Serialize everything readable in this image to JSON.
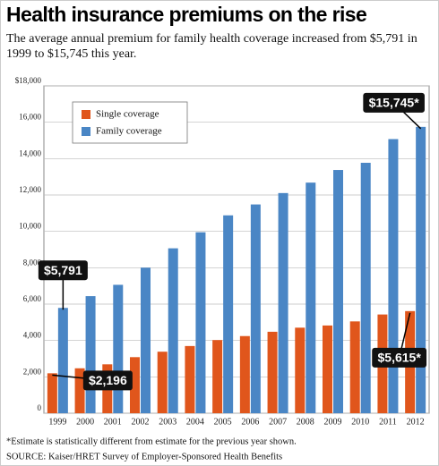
{
  "chart_data": {
    "type": "bar",
    "title": "Health insurance premiums on the rise",
    "subtitle": "The average annual premium for family health coverage increased from $5,791 in 1999 to $15,745 this year.",
    "categories": [
      "1999",
      "2000",
      "2001",
      "2002",
      "2003",
      "2004",
      "2005",
      "2006",
      "2007",
      "2008",
      "2009",
      "2010",
      "2011",
      "2012"
    ],
    "series": [
      {
        "name": "Single coverage",
        "color": "#e0561c",
        "values": [
          2196,
          2471,
          2689,
          3083,
          3383,
          3695,
          4024,
          4242,
          4479,
          4704,
          4824,
          5049,
          5429,
          5615
        ],
        "value_labels": [
          "$2,196",
          null,
          null,
          null,
          null,
          null,
          null,
          null,
          null,
          null,
          null,
          null,
          null,
          "$5,615*"
        ]
      },
      {
        "name": "Family coverage",
        "color": "#4a86c5",
        "values": [
          5791,
          6438,
          7061,
          8003,
          9068,
          9950,
          10880,
          11480,
          12106,
          12680,
          13375,
          13770,
          15073,
          15745
        ],
        "value_labels": [
          "$5,791",
          null,
          null,
          null,
          null,
          null,
          null,
          null,
          null,
          null,
          null,
          null,
          null,
          "$15,745*"
        ]
      }
    ],
    "ylim": [
      0,
      18000
    ],
    "yticks": [
      {
        "value": 0,
        "label": "0"
      },
      {
        "value": 2000,
        "label": "2,000"
      },
      {
        "value": 4000,
        "label": "4,000"
      },
      {
        "value": 6000,
        "label": "6,000"
      },
      {
        "value": 8000,
        "label": "8,000"
      },
      {
        "value": 10000,
        "label": "10,000"
      },
      {
        "value": 12000,
        "label": "12,000"
      },
      {
        "value": 14000,
        "label": "14,000"
      },
      {
        "value": 16000,
        "label": "16,000"
      },
      {
        "value": 18000,
        "label": "$18,000"
      }
    ],
    "grid": true,
    "legend": "top-left",
    "footnote": "*Estimate is statistically different from estimate for the previous year shown.",
    "source": "SOURCE: Kaiser/HRET Survey of Employer-Sponsored Health Benefits"
  }
}
